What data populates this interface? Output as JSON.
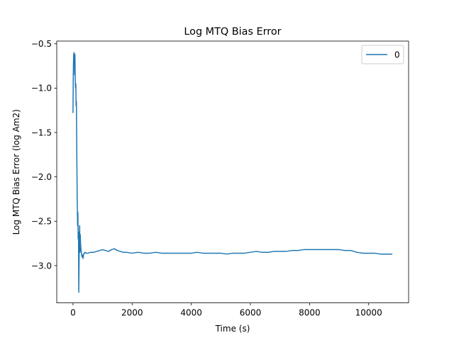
{
  "chart_data": {
    "type": "line",
    "title": "Log MTQ Bias Error",
    "xlabel": "Time (s)",
    "ylabel": "Log MTQ Bias Error (log Am2)",
    "xlim": [
      -550,
      11350
    ],
    "ylim": [
      -3.42,
      -0.47
    ],
    "xticks": [
      0,
      2000,
      4000,
      6000,
      8000,
      10000
    ],
    "xtick_labels": [
      "0",
      "2000",
      "4000",
      "6000",
      "8000",
      "10000"
    ],
    "yticks": [
      -0.5,
      -1.0,
      -1.5,
      -2.0,
      -2.5,
      -3.0
    ],
    "ytick_labels": [
      "−0.5",
      "−1.0",
      "−1.5",
      "−2.0",
      "−2.5",
      "−3.0"
    ],
    "grid": false,
    "legend_position": "top-right",
    "series": [
      {
        "name": "0",
        "color": "#1f77b4",
        "x": [
          0,
          8,
          15,
          25,
          35,
          45,
          55,
          65,
          75,
          85,
          95,
          105,
          115,
          125,
          140,
          155,
          165,
          175,
          185,
          195,
          205,
          215,
          225,
          235,
          245,
          255,
          265,
          280,
          300,
          320,
          340,
          360,
          400,
          450,
          500,
          600,
          700,
          800,
          900,
          1000,
          1100,
          1200,
          1300,
          1400,
          1500,
          1600,
          1700,
          1800,
          2000,
          2200,
          2400,
          2600,
          2800,
          3000,
          3200,
          3400,
          3600,
          3800,
          4000,
          4200,
          4400,
          4600,
          4800,
          5000,
          5200,
          5400,
          5600,
          5800,
          6000,
          6200,
          6400,
          6600,
          6800,
          7000,
          7200,
          7400,
          7600,
          7800,
          8000,
          8200,
          8400,
          8600,
          8800,
          9000,
          9200,
          9400,
          9600,
          9800,
          10000,
          10200,
          10400,
          10600,
          10800
        ],
        "y": [
          -1.28,
          -0.9,
          -0.72,
          -0.62,
          -0.6,
          -0.65,
          -0.85,
          -0.62,
          -0.9,
          -1.0,
          -0.95,
          -1.2,
          -1.15,
          -1.6,
          -2.2,
          -2.55,
          -2.4,
          -2.7,
          -2.62,
          -3.3,
          -2.95,
          -2.7,
          -2.55,
          -2.85,
          -2.65,
          -2.75,
          -2.8,
          -2.85,
          -2.9,
          -2.88,
          -2.92,
          -2.87,
          -2.85,
          -2.86,
          -2.86,
          -2.85,
          -2.85,
          -2.84,
          -2.83,
          -2.82,
          -2.83,
          -2.84,
          -2.82,
          -2.81,
          -2.83,
          -2.84,
          -2.85,
          -2.85,
          -2.86,
          -2.85,
          -2.86,
          -2.86,
          -2.85,
          -2.86,
          -2.86,
          -2.86,
          -2.86,
          -2.86,
          -2.86,
          -2.85,
          -2.86,
          -2.86,
          -2.86,
          -2.86,
          -2.87,
          -2.86,
          -2.86,
          -2.86,
          -2.85,
          -2.84,
          -2.85,
          -2.85,
          -2.84,
          -2.84,
          -2.84,
          -2.83,
          -2.83,
          -2.82,
          -2.82,
          -2.82,
          -2.82,
          -2.82,
          -2.82,
          -2.82,
          -2.83,
          -2.83,
          -2.85,
          -2.86,
          -2.86,
          -2.86,
          -2.87,
          -2.87,
          -2.87
        ]
      }
    ]
  }
}
